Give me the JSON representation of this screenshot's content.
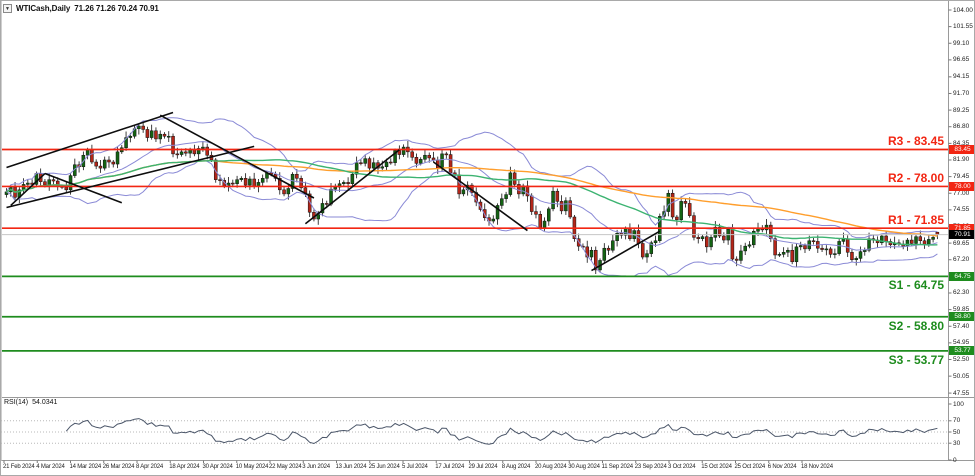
{
  "window": {
    "symbol_period": "WTICash,Daily",
    "quote": "71.26 71.26 70.24 70.91"
  },
  "colors": {
    "bull": "#136313",
    "bear": "#b42619",
    "wick": "#111111",
    "bollinger": "#8a8ad6",
    "ma_fast": "#3cb371",
    "ma_slow": "#ff9e2c",
    "resistance": "#f22613",
    "support": "#1e8c1e",
    "trend": "#0d0d0d",
    "current_price_line": "#c6c6c6",
    "rsi_line": "#4a5568",
    "axis_line": "#9a9a9a",
    "tag_current_bg": "#000000"
  },
  "price_axis": {
    "max": 104.0,
    "min": 47.55,
    "step": 2.45,
    "ticks": [
      "104.00",
      "101.55",
      "99.10",
      "96.65",
      "94.15",
      "91.70",
      "89.25",
      "86.80",
      "84.35",
      "81.90",
      "79.45",
      "77.00",
      "74.55",
      "72.10",
      "69.65",
      "67.20",
      "64.75",
      "62.30",
      "59.85",
      "57.40",
      "54.95",
      "52.50",
      "50.05",
      "47.55"
    ]
  },
  "date_axis": {
    "labels": [
      "21 Feb 2024",
      "4 Mar 2024",
      "14 Mar 2024",
      "26 Mar 2024",
      "8 Apr 2024",
      "18 Apr 2024",
      "30 Apr 2024",
      "10 May 2024",
      "22 May 2024",
      "3 Jun 2024",
      "13 Jun 2024",
      "25 Jun 2024",
      "5 Jul 2024",
      "17 Jul 2024",
      "29 Jul 2024",
      "8 Aug 2024",
      "20 Aug 2024",
      "30 Aug 2024",
      "11 Sep 2024",
      "23 Sep 2024",
      "3 Oct 2024",
      "15 Oct 2024",
      "25 Oct 2024",
      "6 Nov 2024",
      "18 Nov 2024"
    ]
  },
  "levels": [
    {
      "id": "R3",
      "label": "R3 - 83.45",
      "value": 83.45,
      "tag": "83.45",
      "kind": "resistance"
    },
    {
      "id": "R2",
      "label": "R2 - 78.00",
      "value": 78.0,
      "tag": "78.00",
      "kind": "resistance"
    },
    {
      "id": "R1",
      "label": "R1 - 71.85",
      "value": 71.85,
      "tag": "71.85",
      "kind": "resistance"
    },
    {
      "id": "S1",
      "label": "S1 - 64.75",
      "value": 64.75,
      "tag": "64.75",
      "kind": "support"
    },
    {
      "id": "S2",
      "label": "S2 - 58.80",
      "value": 58.8,
      "tag": "58.80",
      "kind": "support"
    },
    {
      "id": "S3",
      "label": "S3 - 53.77",
      "value": 53.77,
      "tag": "53.77",
      "kind": "support"
    }
  ],
  "current_price": {
    "value": 70.91,
    "tag": "70.91"
  },
  "rsi": {
    "name": "RSI(14)",
    "value": "54.0341",
    "period": 14,
    "guides": [
      70,
      50,
      30
    ],
    "axis_ticks": [
      "100",
      "70",
      "50",
      "30",
      "0"
    ]
  },
  "chart_data": {
    "type": "candlestick",
    "title": "WTICash,Daily",
    "symbol": "WTICash",
    "timeframe": "Daily",
    "first_open": 76.8,
    "closes": [
      77.2,
      77.9,
      76.4,
      77.5,
      78.3,
      78.5,
      78.3,
      79.9,
      78.7,
      78.2,
      79.0,
      78.8,
      78.0,
      77.9,
      77.5,
      79.6,
      81.2,
      80.9,
      82.6,
      83.4,
      81.6,
      81.0,
      80.7,
      81.9,
      81.6,
      81.3,
      83.1,
      83.7,
      85.2,
      85.4,
      86.5,
      86.9,
      86.4,
      85.2,
      86.2,
      85.0,
      85.7,
      85.4,
      85.4,
      82.8,
      82.7,
      83.1,
      82.9,
      83.4,
      82.8,
      83.6,
      83.8,
      82.6,
      81.9,
      79.0,
      78.9,
      78.1,
      78.5,
      78.4,
      79.0,
      79.2,
      78.2,
      79.1,
      78.0,
      78.6,
      79.2,
      80.0,
      79.8,
      79.2,
      77.5,
      76.9,
      77.7,
      79.8,
      79.2,
      77.8,
      76.9,
      74.2,
      73.2,
      74.1,
      75.5,
      75.4,
      77.6,
      77.9,
      78.4,
      78.6,
      78.4,
      79.8,
      81.5,
      81.4,
      82.1,
      80.7,
      81.5,
      80.7,
      80.9,
      81.6,
      81.5,
      83.3,
      82.7,
      83.8,
      83.1,
      82.3,
      81.4,
      82.0,
      82.6,
      82.2,
      81.9,
      80.7,
      82.8,
      82.7,
      80.0,
      79.7,
      76.9,
      77.5,
      78.2,
      77.1,
      75.7,
      74.6,
      73.4,
      72.9,
      73.2,
      75.2,
      76.2,
      76.8,
      80.0,
      78.3,
      76.9,
      78.1,
      76.6,
      74.3,
      73.9,
      71.9,
      72.9,
      74.7,
      77.3,
      75.8,
      74.4,
      75.9,
      73.5,
      70.3,
      69.2,
      69.1,
      67.6,
      68.6,
      65.7,
      67.1,
      68.9,
      68.6,
      70.0,
      71.1,
      70.8,
      71.8,
      70.3,
      71.5,
      69.6,
      67.6,
      68.1,
      69.7,
      70.0,
      73.6,
      74.3,
      77.0,
      73.5,
      73.1,
      75.8,
      75.5,
      73.7,
      70.5,
      70.3,
      70.6,
      69.1,
      70.5,
      72.0,
      70.7,
      70.1,
      71.7,
      67.3,
      67.1,
      68.5,
      69.2,
      69.4,
      71.4,
      71.9,
      71.6,
      72.3,
      70.3,
      67.9,
      68.0,
      68.3,
      68.6,
      66.9,
      69.1,
      69.3,
      68.8,
      70.0,
      69.9,
      68.9,
      68.7,
      68.8,
      68.0,
      68.1,
      69.9,
      70.3,
      68.3,
      67.2,
      67.4,
      68.4,
      68.6,
      70.3,
      70.1,
      69.7,
      70.7,
      69.9,
      69.4,
      69.7,
      69.5,
      69.2,
      70.1,
      69.6,
      70.6,
      70.0,
      69.4,
      70.2,
      70.5,
      70.91
    ],
    "last_bar": {
      "o": 71.26,
      "h": 71.26,
      "l": 70.24,
      "c": 70.91
    },
    "wick_up_cycle": [
      0.55,
      0.3,
      0.75,
      0.4,
      0.9,
      0.5
    ],
    "wick_dn_cycle": [
      0.45,
      0.7,
      0.35,
      0.85,
      0.5,
      0.6,
      0.3
    ],
    "indicators": {
      "bollinger": {
        "period": 20,
        "deviation": 2
      },
      "ma_fast": {
        "period": 50
      },
      "ma_slow": {
        "period": 100
      },
      "rsi": {
        "period": 14,
        "current": 54.0341
      }
    },
    "trend_lines": [
      [
        0,
        80.8,
        39,
        88.9
      ],
      [
        0,
        74.9,
        58,
        83.9
      ],
      [
        1,
        75.2,
        9,
        79.9
      ],
      [
        9,
        79.9,
        27,
        75.6
      ],
      [
        36,
        88.5,
        72,
        76.3
      ],
      [
        70,
        72.5,
        92,
        83.4
      ],
      [
        100,
        81.6,
        122,
        71.5
      ],
      [
        137,
        65.6,
        153,
        71.4
      ]
    ]
  }
}
